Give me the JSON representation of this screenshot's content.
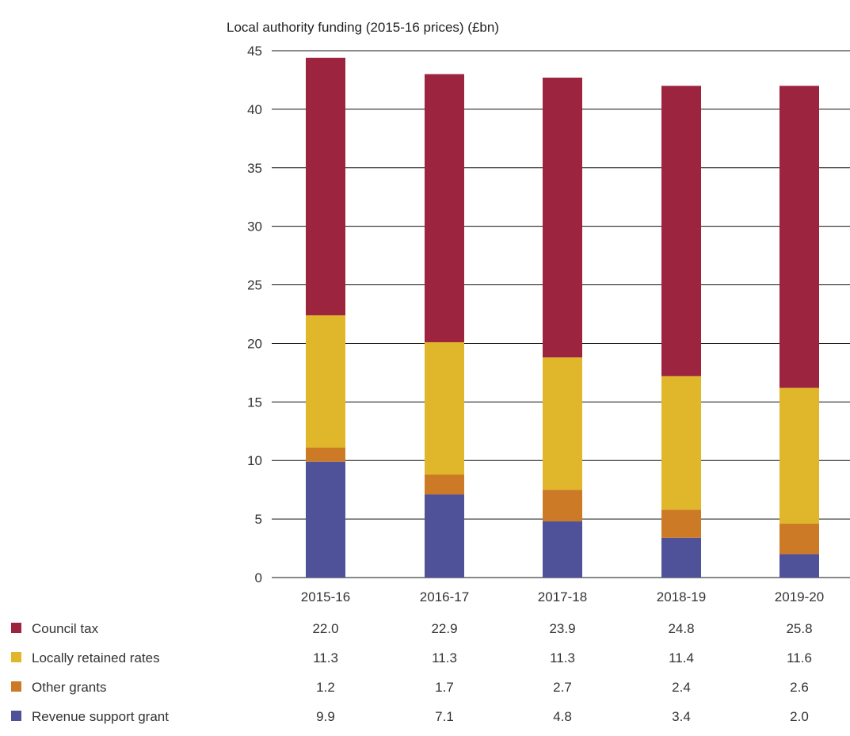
{
  "chart_data": {
    "type": "bar",
    "stacked": true,
    "title": "Local authority funding (2015-16 prices) (£bn)",
    "categories": [
      "2015-16",
      "2016-17",
      "2017-18",
      "2018-19",
      "2019-20"
    ],
    "ylim": [
      0,
      45
    ],
    "yticks": [
      "0",
      "5",
      "10",
      "15",
      "20",
      "25",
      "30",
      "35",
      "40",
      "45"
    ],
    "grid": true,
    "legend_position": "bottom-left",
    "series": [
      {
        "name": "Revenue support grant",
        "color": "#4f5199",
        "values": [
          9.9,
          7.1,
          4.8,
          3.4,
          2.0
        ],
        "labels": [
          "9.9",
          "7.1",
          "4.8",
          "3.4",
          "2.0"
        ]
      },
      {
        "name": "Other grants",
        "color": "#cd7a27",
        "values": [
          1.2,
          1.7,
          2.7,
          2.4,
          2.6
        ],
        "labels": [
          "1.2",
          "1.7",
          "2.7",
          "2.4",
          "2.6"
        ]
      },
      {
        "name": "Locally retained rates",
        "color": "#e0b72b",
        "values": [
          11.3,
          11.3,
          11.3,
          11.4,
          11.6
        ],
        "labels": [
          "11.3",
          "11.3",
          "11.3",
          "11.4",
          "11.6"
        ]
      },
      {
        "name": "Council tax",
        "color": "#9c243f",
        "values": [
          22.0,
          22.9,
          23.9,
          24.8,
          25.8
        ],
        "labels": [
          "22.0",
          "22.9",
          "23.9",
          "24.8",
          "25.8"
        ]
      }
    ],
    "table_order": [
      "Council tax",
      "Locally retained rates",
      "Other grants",
      "Revenue support grant"
    ]
  }
}
